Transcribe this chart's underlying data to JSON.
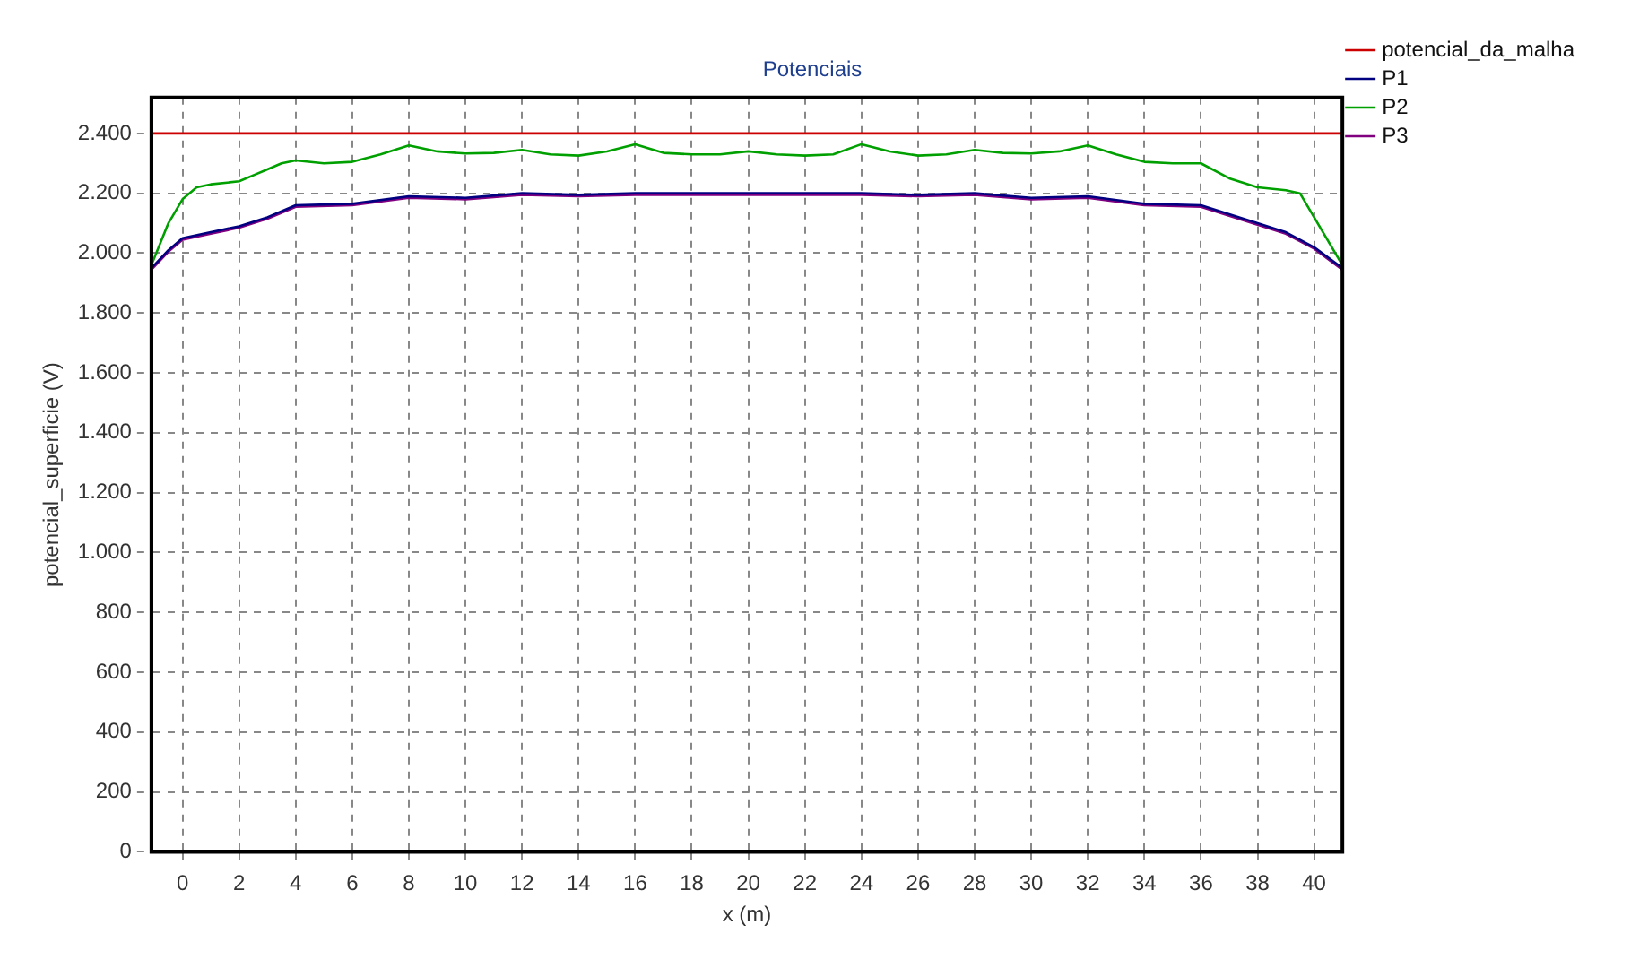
{
  "chart_data": {
    "type": "line",
    "title": "Potenciais",
    "xlabel": "x (m)",
    "ylabel": "potencial_superficie (V)",
    "xlim": [
      -1.1,
      41
    ],
    "xticks": [
      0,
      2,
      4,
      6,
      8,
      10,
      12,
      14,
      16,
      18,
      20,
      22,
      24,
      26,
      28,
      30,
      32,
      34,
      36,
      38,
      40
    ],
    "ylim": [
      0,
      2520
    ],
    "yticks": [
      {
        "value": 0,
        "label": "0"
      },
      {
        "value": 200,
        "label": "200"
      },
      {
        "value": 400,
        "label": "400"
      },
      {
        "value": 600,
        "label": "600"
      },
      {
        "value": 800,
        "label": "800"
      },
      {
        "value": 1000,
        "label": "1.000"
      },
      {
        "value": 1200,
        "label": "1.200"
      },
      {
        "value": 1400,
        "label": "1.400"
      },
      {
        "value": 1600,
        "label": "1.600"
      },
      {
        "value": 1800,
        "label": "1.800"
      },
      {
        "value": 2000,
        "label": "2.000"
      },
      {
        "value": 2200,
        "label": "2.200"
      },
      {
        "value": 2400,
        "label": "2.400"
      }
    ],
    "grid": true,
    "legend": "top right",
    "marker": "none",
    "line_style": "solid",
    "series": [
      {
        "name": "potencial_da_malha",
        "color": "#cc0000",
        "x": [
          -1.1,
          41
        ],
        "values": [
          2400,
          2400
        ]
      },
      {
        "name": "P1",
        "color": "#000080",
        "x": [
          -1.1,
          -0.5,
          0,
          1,
          2,
          3,
          4,
          6,
          8,
          10,
          12,
          14,
          16,
          18,
          20,
          22,
          24,
          26,
          28,
          30,
          32,
          34,
          36,
          37,
          38,
          39,
          40,
          41
        ],
        "values": [
          1950,
          2010,
          2050,
          2070,
          2090,
          2120,
          2160,
          2165,
          2190,
          2185,
          2200,
          2195,
          2200,
          2200,
          2200,
          2200,
          2200,
          2195,
          2200,
          2185,
          2190,
          2165,
          2160,
          2130,
          2100,
          2070,
          2020,
          1950
        ]
      },
      {
        "name": "P2",
        "color": "#00a000",
        "x": [
          -1.1,
          -0.5,
          0,
          0.5,
          1,
          2,
          2.5,
          3,
          3.5,
          4,
          5,
          6,
          7,
          8,
          9,
          10,
          11,
          12,
          13,
          14,
          15,
          16,
          17,
          18,
          19,
          20,
          21,
          22,
          23,
          24,
          25,
          26,
          27,
          28,
          29,
          30,
          31,
          32,
          33,
          34,
          35,
          36,
          37,
          38,
          39,
          39.5,
          40,
          41
        ],
        "values": [
          1960,
          2100,
          2180,
          2220,
          2230,
          2240,
          2260,
          2280,
          2300,
          2310,
          2300,
          2305,
          2330,
          2360,
          2340,
          2333,
          2335,
          2345,
          2330,
          2326,
          2340,
          2364,
          2335,
          2330,
          2330,
          2340,
          2330,
          2326,
          2330,
          2364,
          2340,
          2326,
          2330,
          2345,
          2335,
          2333,
          2340,
          2360,
          2330,
          2305,
          2300,
          2300,
          2250,
          2220,
          2210,
          2200,
          2120,
          1960
        ]
      },
      {
        "name": "P3",
        "color": "#800080",
        "x": [
          -1.1,
          -0.5,
          0,
          1,
          2,
          3,
          4,
          6,
          8,
          10,
          12,
          14,
          16,
          18,
          20,
          22,
          24,
          26,
          28,
          30,
          32,
          34,
          36,
          37,
          38,
          39,
          40,
          41
        ],
        "values": [
          1945,
          2005,
          2045,
          2065,
          2085,
          2115,
          2155,
          2160,
          2185,
          2180,
          2195,
          2190,
          2195,
          2195,
          2195,
          2195,
          2195,
          2190,
          2195,
          2180,
          2185,
          2160,
          2155,
          2125,
          2095,
          2065,
          2015,
          1945
        ]
      }
    ]
  }
}
